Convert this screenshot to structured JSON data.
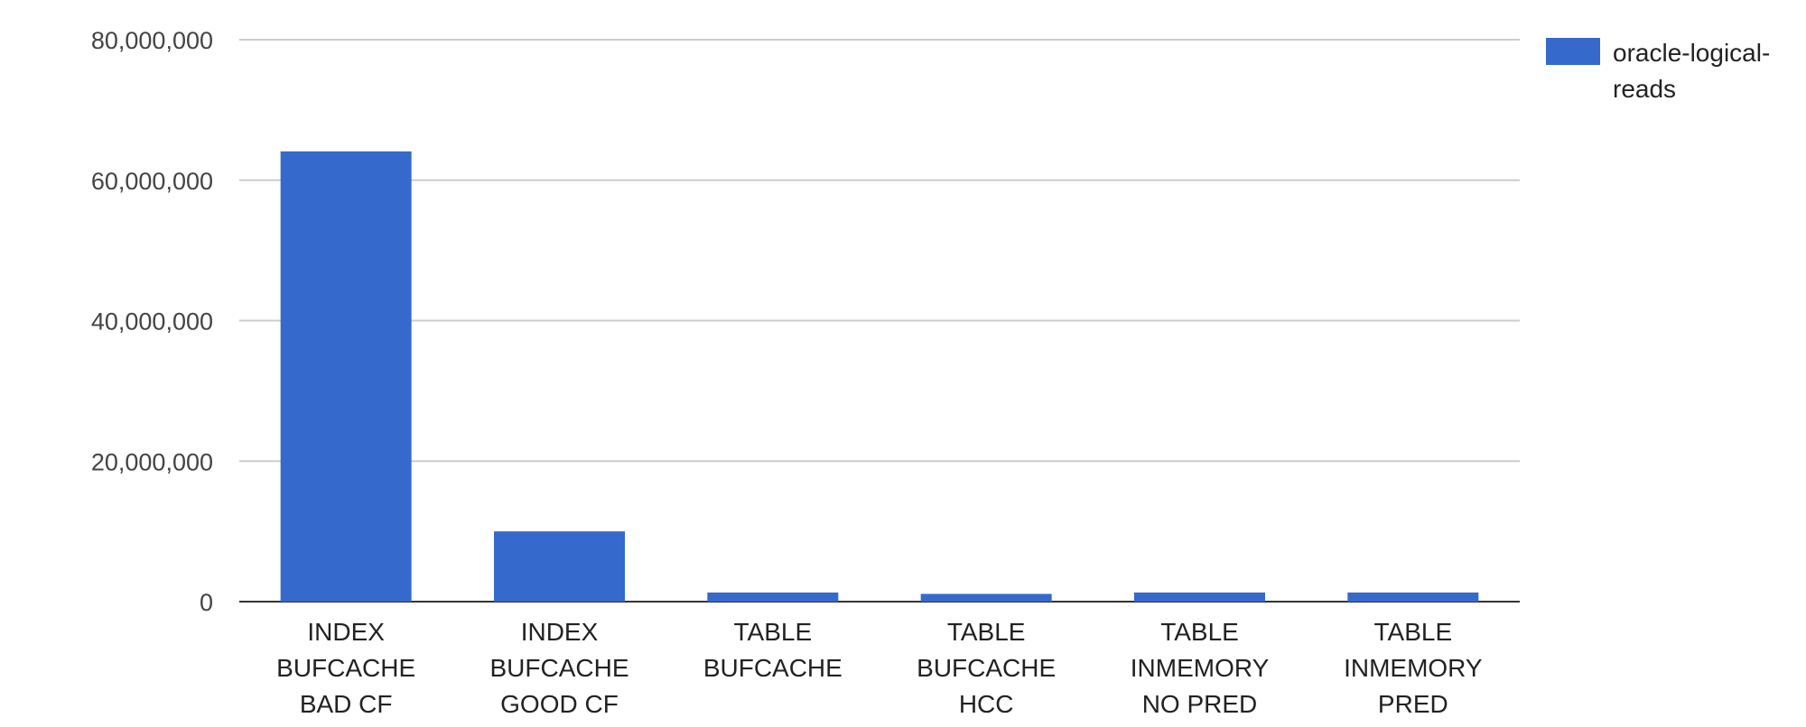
{
  "chart_data": {
    "type": "bar",
    "title": "",
    "xlabel": "",
    "ylabel": "",
    "categories": [
      [
        "INDEX",
        "BUFCACHE",
        "BAD CF"
      ],
      [
        "INDEX",
        "BUFCACHE",
        "GOOD CF"
      ],
      [
        "TABLE",
        "BUFCACHE"
      ],
      [
        "TABLE",
        "BUFCACHE",
        "HCC"
      ],
      [
        "TABLE",
        "INMEMORY",
        "NO PRED"
      ],
      [
        "TABLE",
        "INMEMORY",
        "PRED"
      ]
    ],
    "series": [
      {
        "name": "oracle-logical-reads",
        "legend_lines": [
          "oracle-logical-",
          "reads"
        ],
        "color": "#3669cc",
        "values": [
          64100000,
          10000000,
          1300000,
          1100000,
          1300000,
          1300000
        ]
      }
    ],
    "ylim": [
      0,
      80000000
    ],
    "yticks": [
      0,
      20000000,
      40000000,
      60000000,
      80000000
    ],
    "ytick_labels": [
      "0",
      "20,000,000",
      "40,000,000",
      "60,000,000",
      "80,000,000"
    ],
    "grid": true,
    "legend_position": "right"
  }
}
